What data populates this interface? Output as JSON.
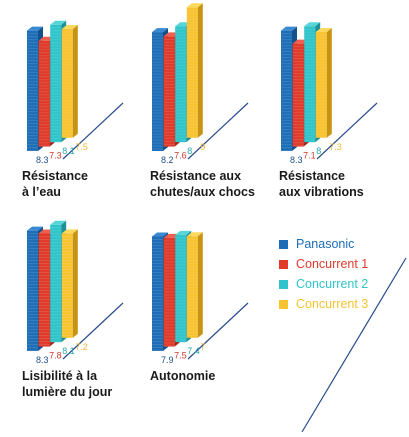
{
  "chart_data": [
    {
      "type": "bar",
      "title": "Résistance à l’eau",
      "title_lines": [
        "Résistance",
        "à l’eau"
      ],
      "series": [
        {
          "name": "Panasonic",
          "values": [
            8.3
          ]
        },
        {
          "name": "Concurrent 1",
          "values": [
            7.3
          ]
        },
        {
          "name": "Concurrent 2",
          "values": [
            8.1
          ]
        },
        {
          "name": "Concurrent 3",
          "values": [
            7.5
          ]
        }
      ],
      "value_labels": [
        "8.3",
        "7.3",
        "8.1",
        "7.5"
      ]
    },
    {
      "type": "bar",
      "title": "Résistance aux chutes/aux chocs",
      "title_lines": [
        "Résistance aux",
        "chutes/aux chocs"
      ],
      "series": [
        {
          "name": "Panasonic",
          "values": [
            8.2
          ]
        },
        {
          "name": "Concurrent 1",
          "values": [
            7.6
          ]
        },
        {
          "name": "Concurrent 2",
          "values": [
            8
          ]
        },
        {
          "name": "Concurrent 3",
          "values": [
            9
          ]
        }
      ],
      "value_labels": [
        "8.2",
        "7.6",
        "8",
        "9"
      ]
    },
    {
      "type": "bar",
      "title": "Résistance aux vibrations",
      "title_lines": [
        "Résistance",
        "aux vibrations"
      ],
      "series": [
        {
          "name": "Panasonic",
          "values": [
            8.3
          ]
        },
        {
          "name": "Concurrent 1",
          "values": [
            7.1
          ]
        },
        {
          "name": "Concurrent 2",
          "values": [
            8
          ]
        },
        {
          "name": "Concurrent 3",
          "values": [
            7.3
          ]
        }
      ],
      "value_labels": [
        "8.3",
        "7.1",
        "8",
        "7.3"
      ]
    },
    {
      "type": "bar",
      "title": "Lisibilité à la lumière du jour",
      "title_lines": [
        "Lisibilité à la",
        "lumière du jour"
      ],
      "series": [
        {
          "name": "Panasonic",
          "values": [
            8.3
          ]
        },
        {
          "name": "Concurrent 1",
          "values": [
            7.8
          ]
        },
        {
          "name": "Concurrent 2",
          "values": [
            8.1
          ]
        },
        {
          "name": "Concurrent 3",
          "values": [
            7.2
          ]
        }
      ],
      "value_labels": [
        "8.3",
        "7.8",
        "8.1",
        "7.2"
      ]
    },
    {
      "type": "bar",
      "title": "Autonomie",
      "title_lines": [
        "Autonomie"
      ],
      "series": [
        {
          "name": "Panasonic",
          "values": [
            7.9
          ]
        },
        {
          "name": "Concurrent 1",
          "values": [
            7.5
          ]
        },
        {
          "name": "Concurrent 2",
          "values": [
            7.4
          ]
        },
        {
          "name": "Concurrent 3",
          "values": [
            7
          ]
        }
      ],
      "value_labels": [
        "7.9",
        "7.5",
        "7.4",
        "7"
      ]
    }
  ],
  "legend": [
    {
      "label": "Panasonic",
      "color": "#1d6db7"
    },
    {
      "label": "Concurrent 1",
      "color": "#e03a2a"
    },
    {
      "label": "Concurrent 2",
      "color": "#2ec4c9"
    },
    {
      "label": "Concurrent 3",
      "color": "#f7c330"
    }
  ],
  "colors": {
    "series_front": [
      "#1d6db7",
      "#e03a2a",
      "#2ec4c9",
      "#f7c330"
    ],
    "series_side": [
      "#15528c",
      "#a82518",
      "#1f9196",
      "#c89313"
    ],
    "series_top": [
      "#3a8ad1",
      "#ef6050",
      "#57d6da",
      "#fbd95e"
    ],
    "label_colors": [
      "#1d4f8c",
      "#cc3b2d",
      "#27a9b0",
      "#f2b632"
    ],
    "axis": "#2a4c8a"
  }
}
